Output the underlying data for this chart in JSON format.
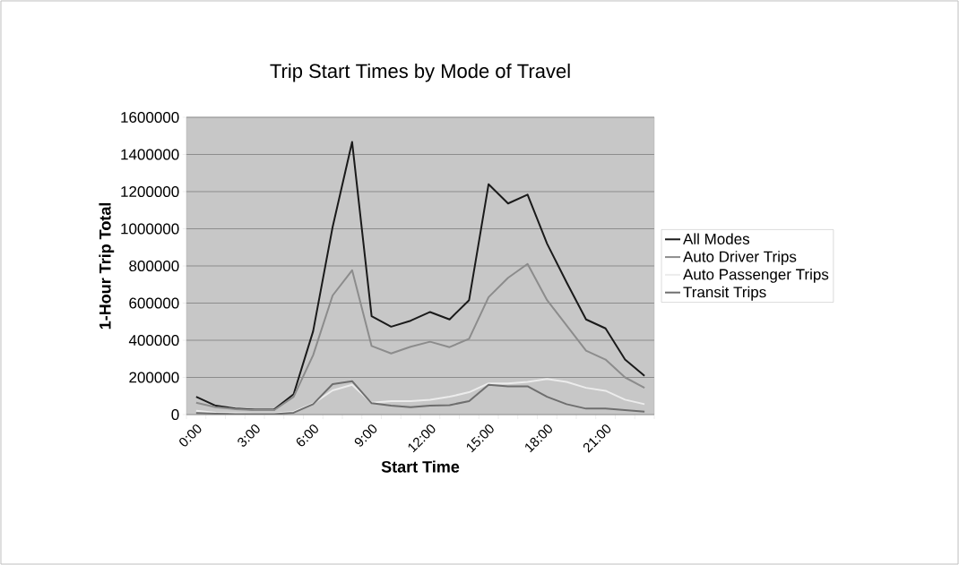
{
  "chart_data": {
    "type": "line",
    "title": "Trip Start Times by Mode of Travel",
    "xlabel": "Start Time",
    "ylabel": "1-Hour Trip Total",
    "categories": [
      "0:00",
      null,
      null,
      "3:00",
      null,
      null,
      "6:00",
      null,
      null,
      "9:00",
      null,
      null,
      "12:00",
      null,
      null,
      "15:00",
      null,
      null,
      "18:00",
      null,
      null,
      "21:00",
      null,
      null
    ],
    "series": [
      {
        "name": "All Modes",
        "color": "#1a1a1a",
        "values": [
          96000,
          48000,
          32000,
          27000,
          27000,
          110000,
          449000,
          1010000,
          1467000,
          529000,
          473000,
          505000,
          552000,
          512000,
          616000,
          1240000,
          1136000,
          1184000,
          920000,
          712000,
          512000,
          464000,
          296000,
          208000
        ]
      },
      {
        "name": "Auto Driver Trips",
        "color": "#8c8c8c",
        "values": [
          64000,
          40000,
          29000,
          24000,
          24000,
          96000,
          320000,
          641000,
          777000,
          369000,
          329000,
          365000,
          392000,
          363000,
          408000,
          632000,
          736000,
          811000,
          616000,
          480000,
          344000,
          296000,
          200000,
          144000
        ]
      },
      {
        "name": "Auto Passenger Trips",
        "color": "#ececec",
        "values": [
          20000,
          10000,
          8000,
          6000,
          6000,
          15000,
          60000,
          130000,
          160000,
          64000,
          72000,
          72000,
          80000,
          96000,
          120000,
          168000,
          168000,
          176000,
          192000,
          176000,
          144000,
          128000,
          80000,
          56000
        ]
      },
      {
        "name": "Transit Trips",
        "color": "#6e6e6e",
        "values": [
          8000,
          5000,
          3000,
          2000,
          2000,
          10000,
          56000,
          164000,
          180000,
          61000,
          48000,
          40000,
          48000,
          51000,
          72000,
          160000,
          152000,
          152000,
          96000,
          56000,
          32000,
          32000,
          24000,
          16000
        ]
      }
    ],
    "ylim": [
      0,
      1600000
    ],
    "yticks": [
      0,
      200000,
      400000,
      600000,
      800000,
      1000000,
      1200000,
      1400000,
      1600000
    ],
    "grid": "y",
    "legend": "right",
    "line_style": "solid"
  }
}
